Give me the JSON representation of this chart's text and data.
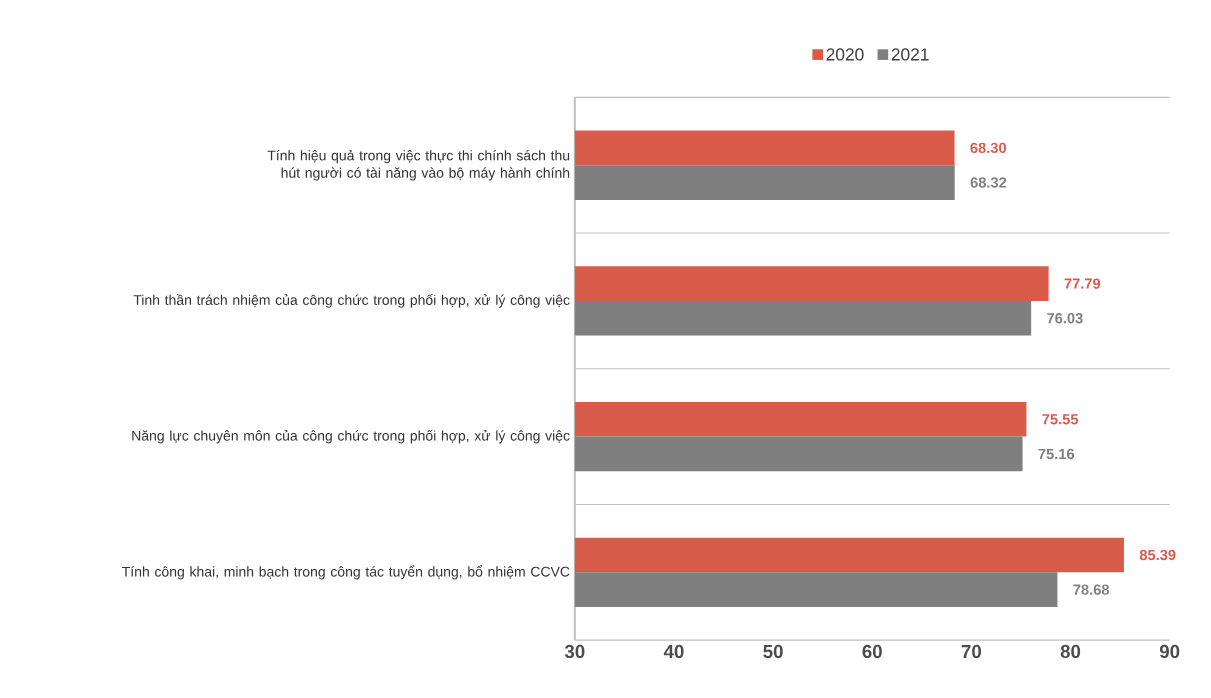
{
  "chart_data": {
    "type": "bar",
    "orientation": "horizontal",
    "categories": [
      "Tính hiệu quả trong việc thực thi chính sách thu hút người có tài năng vào bộ máy hành chính",
      "Tinh thần trách nhiệm của công chức trong phối hợp, xử lý công việc",
      "Năng lực chuyên môn của công chức trong phối hợp, xử lý công việc",
      "Tính công khai, minh bạch trong công tác tuyển dụng, bổ nhiệm CCVC"
    ],
    "series": [
      {
        "name": "2020",
        "color": "#d95b49",
        "values": [
          68.3,
          77.79,
          75.55,
          85.39
        ],
        "value_labels": [
          "68.30",
          "77.79",
          "75.55",
          "85.39"
        ]
      },
      {
        "name": "2021",
        "color": "#7f7f7f",
        "values": [
          68.32,
          76.03,
          75.16,
          78.68
        ],
        "value_labels": [
          "68.32",
          "76.03",
          "75.16",
          "78.68"
        ]
      }
    ],
    "xlim": [
      30,
      90
    ],
    "xticks": [
      30,
      40,
      50,
      60,
      70,
      80,
      90
    ],
    "grid": "y",
    "legend": "top"
  }
}
